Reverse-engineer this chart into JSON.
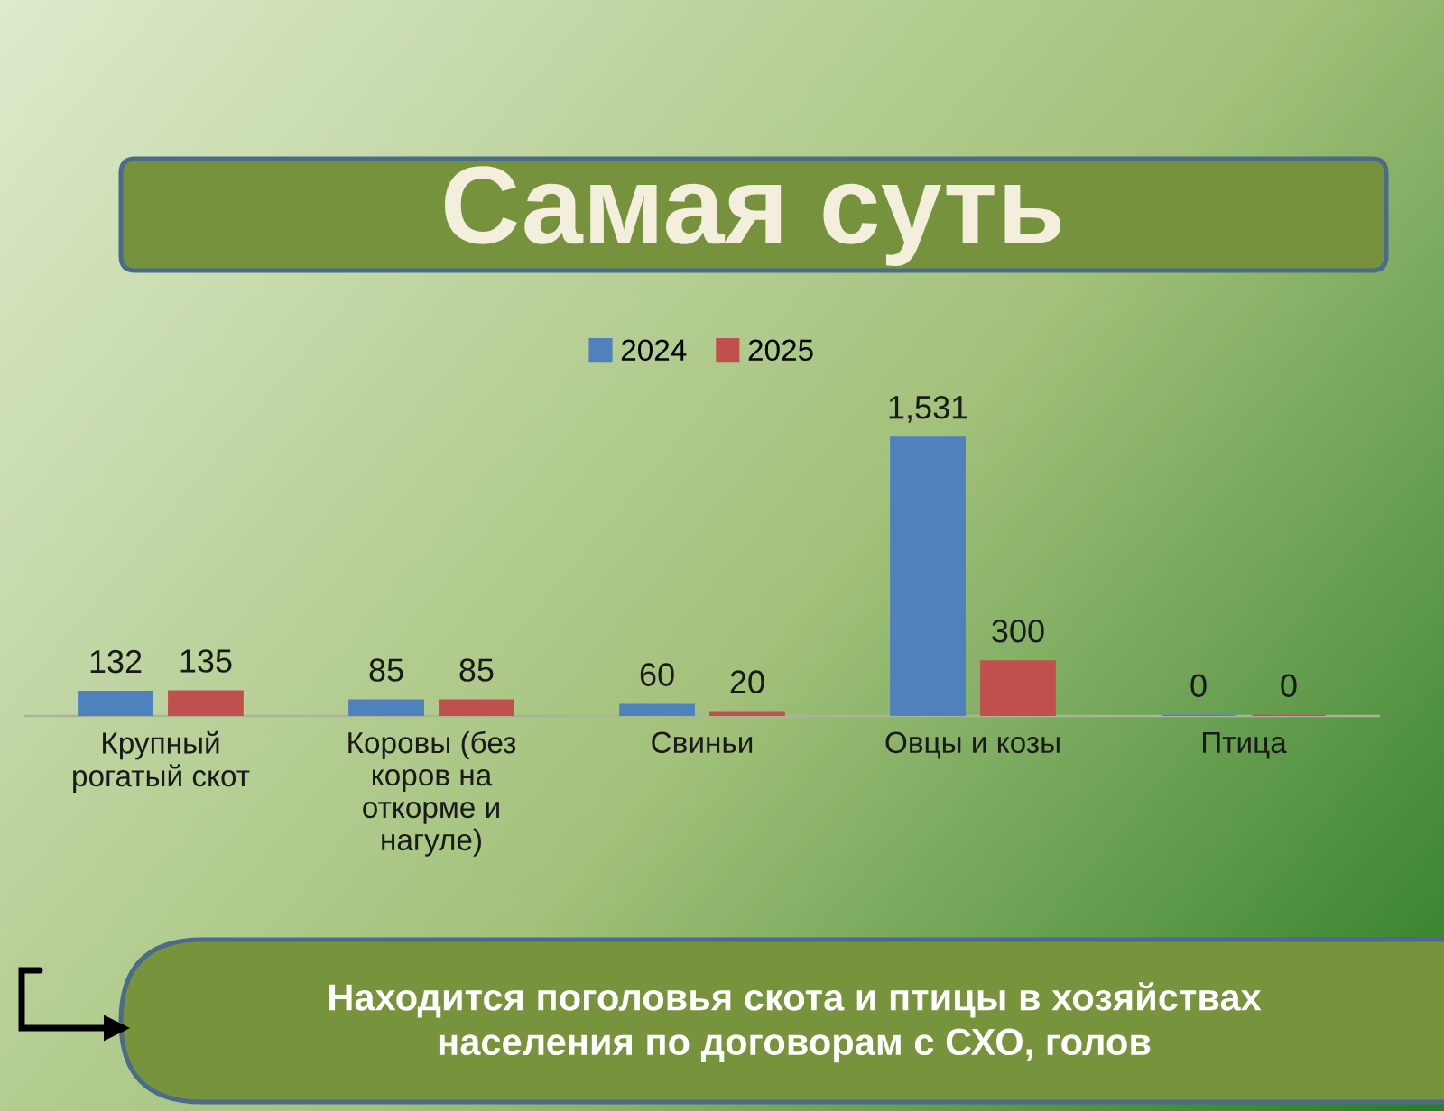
{
  "chart_data": {
    "type": "bar",
    "title": "Самая суть",
    "categories": [
      "Крупный рогатый скот",
      "Коровы (без коров на откорме и нагуле)",
      "Свиньи",
      "Овцы и козы",
      "Птица"
    ],
    "series": [
      {
        "name": "2024",
        "color": "#4f81bd",
        "values": [
          132,
          85,
          60,
          1531,
          0
        ],
        "value_labels": [
          "132",
          "85",
          "60",
          "1,531",
          "0"
        ]
      },
      {
        "name": "2025",
        "color": "#c0504d",
        "values": [
          135,
          85,
          20,
          300,
          0
        ],
        "value_labels": [
          "135",
          "85",
          "20",
          "300",
          "0"
        ]
      }
    ],
    "legend": "top",
    "tick_labels": "x",
    "annotations": [
      "Находится поголовья скота и птицы в хозяйствах населения по договорам с СХО, голов"
    ]
  }
}
